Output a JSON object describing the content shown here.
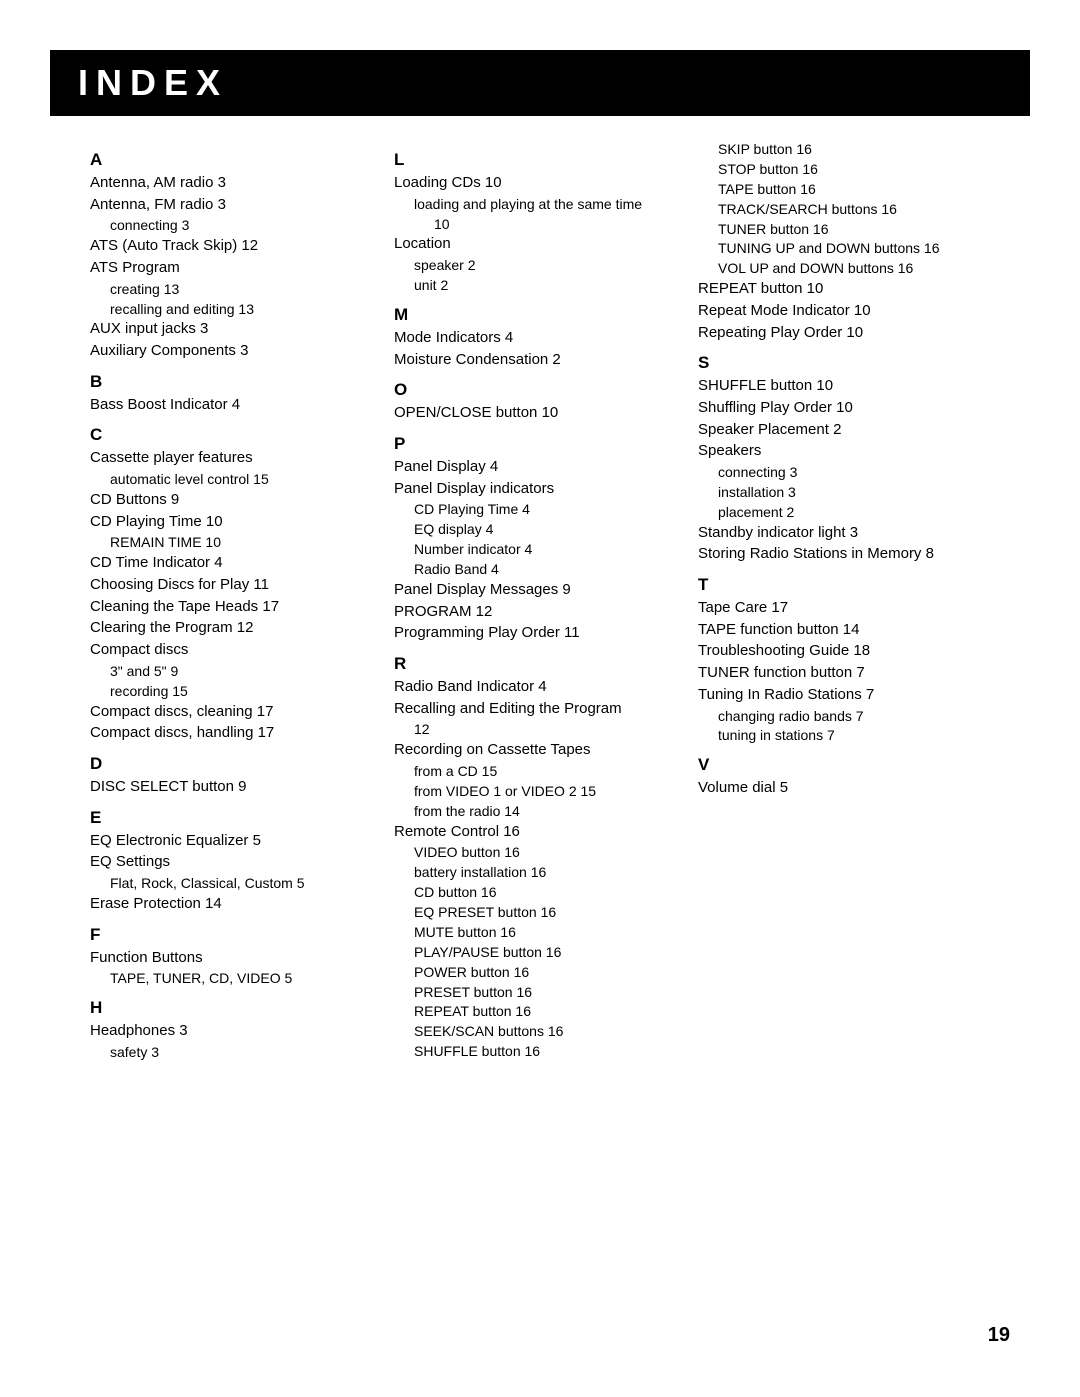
{
  "header": {
    "title": "INDEX"
  },
  "page_number": "19",
  "columns": [
    {
      "sections": [
        {
          "letter": "A",
          "entries": [
            {
              "t": "Antenna, AM radio  3"
            },
            {
              "t": "Antenna, FM radio  3",
              "subs": [
                {
                  "t": "connecting  3"
                }
              ]
            },
            {
              "t": "ATS (Auto Track Skip)  12"
            },
            {
              "t": "ATS Program",
              "subs": [
                {
                  "t": "creating  13"
                },
                {
                  "t": "recalling and editing  13"
                }
              ]
            },
            {
              "t": "AUX input jacks  3"
            },
            {
              "t": "Auxiliary Components  3"
            }
          ]
        },
        {
          "letter": "B",
          "entries": [
            {
              "t": "Bass Boost Indicator  4"
            }
          ]
        },
        {
          "letter": "C",
          "entries": [
            {
              "t": "Cassette player features",
              "subs": [
                {
                  "t": "automatic level control  15"
                }
              ]
            },
            {
              "t": "CD Buttons  9"
            },
            {
              "t": "CD Playing Time  10",
              "subs": [
                {
                  "t": "REMAIN TIME  10"
                }
              ]
            },
            {
              "t": "CD Time Indicator  4"
            },
            {
              "t": "Choosing Discs for Play  11"
            },
            {
              "t": "Cleaning the Tape Heads  17"
            },
            {
              "t": "Clearing the Program  12"
            },
            {
              "t": "Compact discs",
              "subs": [
                {
                  "t": "3\" and 5\"  9"
                },
                {
                  "t": "recording  15"
                }
              ]
            },
            {
              "t": "Compact discs, cleaning  17"
            },
            {
              "t": "Compact discs, handling  17"
            }
          ]
        },
        {
          "letter": "D",
          "entries": [
            {
              "t": "DISC SELECT button  9"
            }
          ]
        },
        {
          "letter": "E",
          "entries": [
            {
              "t": "EQ Electronic Equalizer  5"
            },
            {
              "t": "EQ Settings",
              "subs": [
                {
                  "t": "Flat, Rock, Classical, Custom 5"
                }
              ]
            },
            {
              "t": "Erase Protection  14"
            }
          ]
        },
        {
          "letter": "F",
          "entries": [
            {
              "t": "Function Buttons",
              "subs": [
                {
                  "t": "TAPE, TUNER, CD, VIDEO  5"
                }
              ]
            }
          ]
        },
        {
          "letter": "H",
          "entries": [
            {
              "t": "Headphones  3",
              "subs": [
                {
                  "t": "safety  3"
                }
              ]
            }
          ]
        }
      ]
    },
    {
      "sections": [
        {
          "letter": "L",
          "entries": [
            {
              "t": "Loading CDs  10",
              "subs": [
                {
                  "t": "loading and playing at the same time",
                  "subsubs": [
                    {
                      "t": "10"
                    }
                  ]
                }
              ]
            },
            {
              "t": "Location",
              "subs": [
                {
                  "t": "speaker  2"
                },
                {
                  "t": "unit  2"
                }
              ]
            }
          ]
        },
        {
          "letter": "M",
          "entries": [
            {
              "t": "Mode Indicators  4"
            },
            {
              "t": "Moisture Condensation  2"
            }
          ]
        },
        {
          "letter": "O",
          "entries": [
            {
              "t": "OPEN/CLOSE button  10"
            }
          ]
        },
        {
          "letter": "P",
          "entries": [
            {
              "t": "Panel Display  4"
            },
            {
              "t": "Panel Display indicators",
              "subs": [
                {
                  "t": "CD Playing Time  4"
                },
                {
                  "t": "EQ display  4"
                },
                {
                  "t": "Number indicator  4"
                },
                {
                  "t": "Radio Band  4"
                }
              ]
            },
            {
              "t": "Panel Display Messages  9"
            },
            {
              "t": "PROGRAM  12"
            },
            {
              "t": "Programming Play Order  11"
            }
          ]
        },
        {
          "letter": "R",
          "entries": [
            {
              "t": "Radio Band Indicator  4"
            },
            {
              "t": "Recalling and Editing the Program",
              "subs": [
                {
                  "t": "12"
                }
              ]
            },
            {
              "t": "Recording on Cassette Tapes",
              "subs": [
                {
                  "t": "from a CD  15"
                },
                {
                  "t": "from VIDEO 1 or VIDEO 2 15"
                },
                {
                  "t": "from the radio  14"
                }
              ]
            },
            {
              "t": "Remote Control  16",
              "subs": [
                {
                  "t": "VIDEO button  16"
                },
                {
                  "t": "battery installation  16"
                },
                {
                  "t": "CD button  16"
                },
                {
                  "t": "EQ PRESET button  16"
                },
                {
                  "t": "MUTE button  16"
                },
                {
                  "t": "PLAY/PAUSE button 16"
                },
                {
                  "t": "POWER button  16"
                },
                {
                  "t": "PRESET button  16"
                },
                {
                  "t": "REPEAT button 16"
                },
                {
                  "t": "SEEK/SCAN buttons 16"
                },
                {
                  "t": "SHUFFLE button 16"
                }
              ]
            }
          ]
        }
      ]
    },
    {
      "sections": [
        {
          "letter": "",
          "entries": [
            {
              "t": "",
              "subs": [
                {
                  "t": "SKIP button 16"
                },
                {
                  "t": "STOP button 16"
                },
                {
                  "t": "TAPE button  16"
                },
                {
                  "t": "TRACK/SEARCH buttons  16"
                },
                {
                  "t": "TUNER button  16"
                },
                {
                  "t": "TUNING  UP and DOWN buttons 16"
                },
                {
                  "t": "VOL UP and DOWN buttons  16"
                }
              ]
            },
            {
              "t": "REPEAT button  10"
            },
            {
              "t": "Repeat Mode Indicator  10"
            },
            {
              "t": "Repeating Play Order  10"
            }
          ]
        },
        {
          "letter": "S",
          "entries": [
            {
              "t": "SHUFFLE button  10"
            },
            {
              "t": "Shuffling Play Order  10"
            },
            {
              "t": "Speaker Placement  2"
            },
            {
              "t": "Speakers",
              "subs": [
                {
                  "t": "connecting  3"
                },
                {
                  "t": "installation  3"
                },
                {
                  "t": "placement  2"
                }
              ]
            },
            {
              "t": "Standby indicator light  3"
            },
            {
              "t": "Storing Radio Stations in Memory  8"
            }
          ]
        },
        {
          "letter": "T",
          "entries": [
            {
              "t": "Tape Care  17"
            },
            {
              "t": "TAPE function button  14"
            },
            {
              "t": "Troubleshooting Guide  18"
            },
            {
              "t": "TUNER function button  7"
            },
            {
              "t": "Tuning In Radio Stations  7",
              "subs": [
                {
                  "t": "changing radio bands  7"
                },
                {
                  "t": "tuning in stations  7"
                }
              ]
            }
          ]
        },
        {
          "letter": "V",
          "entries": [
            {
              "t": "Volume dial  5"
            }
          ]
        }
      ]
    }
  ]
}
